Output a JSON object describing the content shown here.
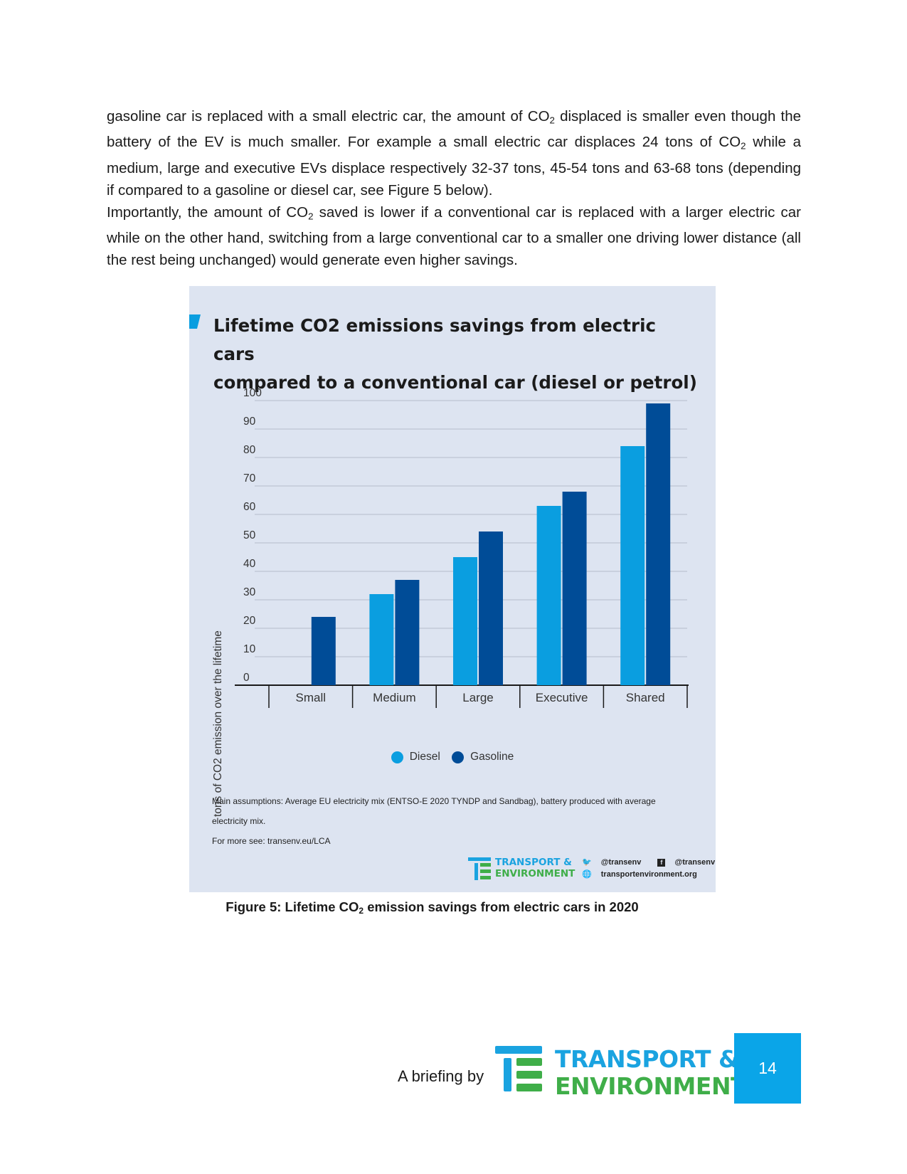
{
  "body": {
    "p1_a": "gasoline car is replaced with a small electric car, the amount of CO",
    "p1_b": " displaced is smaller even though the battery of the EV is much smaller. For example a small electric car displaces 24 tons of CO",
    "p1_c": " while a medium, large and executive EVs displace respectively 32-37 tons, 45-54 tons and 63-68 tons (depending if compared to a gasoline or diesel car, see Figure 5 below).",
    "p2_a": "Importantly, the amount of CO",
    "p2_b": " saved is lower if a conventional car is replaced with a larger electric car while on the other hand, switching from a large conventional car to a smaller one driving lower distance (all the rest being unchanged) would generate even higher savings.",
    "sub2": "2"
  },
  "figure": {
    "title_line1": "Lifetime CO2 emissions savings from electric cars",
    "title_line2": "compared to a conventional car (diesel or petrol)",
    "notes_line1": "Main assumptions: Average EU electricity mix (ENTSO-E 2020 TYNDP and Sandbag), battery produced with average",
    "notes_line2": "electricity mix.",
    "notes_line3": "For more see: transenv.eu/LCA",
    "brand_line1": "TRANSPORT &",
    "brand_line2": "ENVIRONMENT",
    "twitter": "@transenv",
    "facebook": "@transenv",
    "website": "transportenvironment.org"
  },
  "chart_data": {
    "type": "bar",
    "title": "Lifetime CO2 emissions savings from electric cars compared to a conventional car (diesel or petrol)",
    "ylabel": "tons of CO2 emission over the lifetime",
    "xlabel": "",
    "ylim": [
      0,
      100
    ],
    "yticks": [
      0,
      10,
      20,
      30,
      40,
      50,
      60,
      70,
      80,
      90,
      100
    ],
    "categories": [
      "Small",
      "Medium",
      "Large",
      "Executive",
      "Shared"
    ],
    "series": [
      {
        "name": "Diesel",
        "color": "#0a9ee0",
        "values": [
          null,
          32,
          45,
          63,
          84
        ]
      },
      {
        "name": "Gasoline",
        "color": "#004c97",
        "values": [
          24,
          37,
          54,
          68,
          99
        ]
      }
    ],
    "grid": true,
    "legend": "bottom-center"
  },
  "caption": {
    "prefix": "Figure 5: Lifetime CO",
    "sub": "2",
    "suffix": " emission savings from electric cars in 2020"
  },
  "footer": {
    "briefing": "A briefing by",
    "logo_line1": "TRANSPORT &",
    "logo_line2": "ENVIRONMENT",
    "page_number": "14"
  },
  "colors": {
    "brand_blue": "#1aa3e0",
    "brand_green": "#3fae49",
    "figure_bg": "#dde4f1"
  }
}
